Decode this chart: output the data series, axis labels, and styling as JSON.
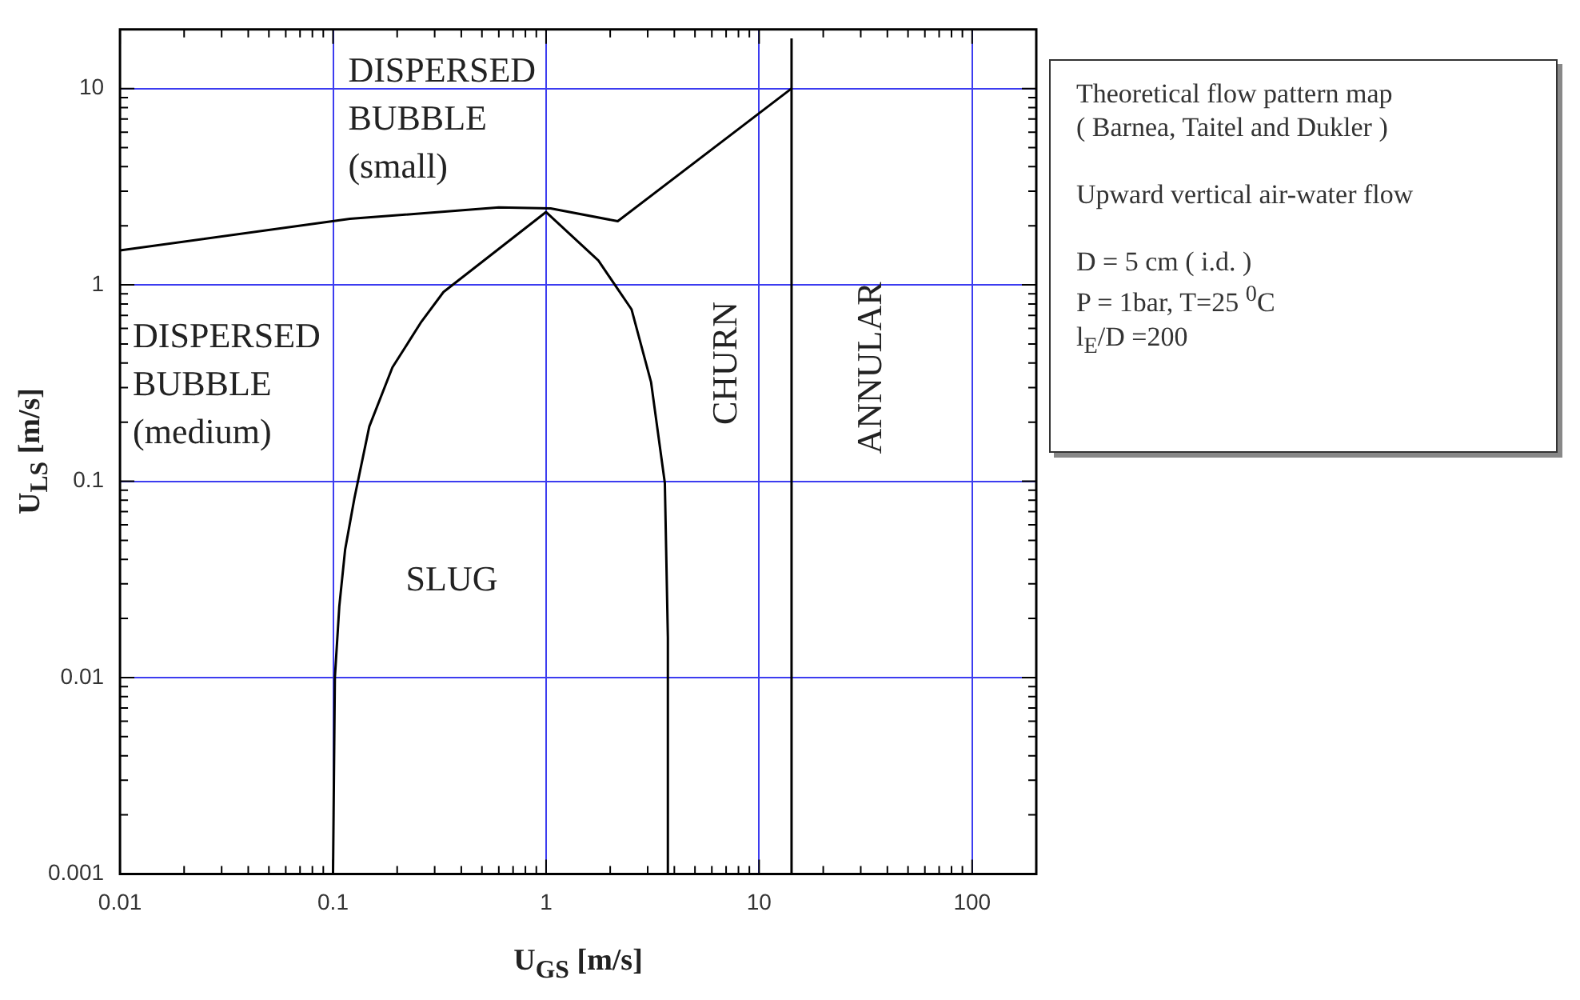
{
  "chart_data": {
    "type": "line",
    "xlabel": "U$_{GS}$ [m/s]",
    "ylabel": "U$_{LS}$ [m/s]",
    "log": "xy",
    "grid": true,
    "legend": false,
    "marker": "none",
    "xlim": [
      0.01,
      200
    ],
    "ylim": [
      0.001,
      20
    ],
    "xticks": [
      0.01,
      {
        "value": 0.02,
        "label": null
      },
      {
        "value": 0.03,
        "label": null
      },
      {
        "value": 0.04,
        "label": null
      },
      {
        "value": 0.05,
        "label": null
      },
      {
        "value": 0.06,
        "label": null
      },
      {
        "value": 0.07,
        "label": null
      },
      {
        "value": 0.08,
        "label": null
      },
      {
        "value": 0.09,
        "label": null
      },
      0.1,
      {
        "value": 0.2,
        "label": null
      },
      {
        "value": 0.3,
        "label": null
      },
      {
        "value": 0.4,
        "label": null
      },
      {
        "value": 0.5,
        "label": null
      },
      {
        "value": 0.6,
        "label": null
      },
      {
        "value": 0.7,
        "label": null
      },
      {
        "value": 0.8,
        "label": null
      },
      {
        "value": 0.9,
        "label": null
      },
      1,
      {
        "value": 2,
        "label": null
      },
      {
        "value": 3,
        "label": null
      },
      {
        "value": 4,
        "label": null
      },
      {
        "value": 5,
        "label": null
      },
      {
        "value": 6,
        "label": null
      },
      {
        "value": 7,
        "label": null
      },
      {
        "value": 8,
        "label": null
      },
      {
        "value": 9,
        "label": null
      },
      10,
      {
        "value": 20,
        "label": null
      },
      {
        "value": 30,
        "label": null
      },
      {
        "value": 40,
        "label": null
      },
      {
        "value": 50,
        "label": null
      },
      {
        "value": 60,
        "label": null
      },
      {
        "value": 70,
        "label": null
      },
      {
        "value": 80,
        "label": null
      },
      {
        "value": 90,
        "label": null
      },
      100
    ],
    "yticks": [
      0.001,
      {
        "value": 0.002,
        "label": null
      },
      {
        "value": 0.003,
        "label": null
      },
      {
        "value": 0.004,
        "label": null
      },
      {
        "value": 0.005,
        "label": null
      },
      {
        "value": 0.006,
        "label": null
      },
      {
        "value": 0.007,
        "label": null
      },
      {
        "value": 0.008,
        "label": null
      },
      {
        "value": 0.009,
        "label": null
      },
      0.01,
      {
        "value": 0.02,
        "label": null
      },
      {
        "value": 0.03,
        "label": null
      },
      {
        "value": 0.04,
        "label": null
      },
      {
        "value": 0.05,
        "label": null
      },
      {
        "value": 0.06,
        "label": null
      },
      {
        "value": 0.07,
        "label": null
      },
      {
        "value": 0.08,
        "label": null
      },
      {
        "value": 0.09,
        "label": null
      },
      0.1,
      {
        "value": 0.2,
        "label": null
      },
      {
        "value": 0.3,
        "label": null
      },
      {
        "value": 0.4,
        "label": null
      },
      {
        "value": 0.5,
        "label": null
      },
      {
        "value": 0.6,
        "label": null
      },
      {
        "value": 0.7,
        "label": null
      },
      {
        "value": 0.8,
        "label": null
      },
      {
        "value": 0.9,
        "label": null
      },
      1,
      {
        "value": 2,
        "label": null
      },
      {
        "value": 3,
        "label": null
      },
      {
        "value": 4,
        "label": null
      },
      {
        "value": 5,
        "label": null
      },
      {
        "value": 6,
        "label": null
      },
      {
        "value": 7,
        "label": null
      },
      {
        "value": 8,
        "label": null
      },
      {
        "value": 9,
        "label": null
      },
      10
    ],
    "series": [
      {
        "color": "#000000",
        "x": [
          0.01,
          0.12,
          0.6,
          1.05,
          2.17,
          14.2
        ],
        "values": [
          1.5,
          2.17,
          2.48,
          2.45,
          2.11,
          10
        ]
      },
      {
        "color": "#000000",
        "x": [
          0.1,
          0.102,
          0.107,
          0.114,
          0.126,
          0.148,
          0.19,
          0.26,
          0.33,
          1.0,
          1.76,
          2.52,
          3.11,
          3.61,
          3.73,
          3.73
        ],
        "values": [
          0.001,
          0.01,
          0.023,
          0.045,
          0.082,
          0.19,
          0.38,
          0.65,
          0.92,
          2.35,
          1.33,
          0.75,
          0.32,
          0.098,
          0.016,
          0.001
        ]
      },
      {
        "color": "#000000",
        "x": [
          14.2,
          14.2
        ],
        "values": [
          0.001,
          18
        ]
      }
    ],
    "annotations": [
      "DISPERSED\nBUBBLE\n(small)",
      "DISPERSED\nBUBBLE\n(medium)",
      "SLUG",
      "CHURN",
      "ANNULAR",
      "Theoretical flow pattern map",
      "( Barnea, Taitel and Dukler )",
      "Upward vertical air-water flow",
      "D  = 5 cm ( i.d. )",
      "P = 1bar, T=25 $^{0}$C",
      "l$_{E}$/D =200"
    ]
  }
}
